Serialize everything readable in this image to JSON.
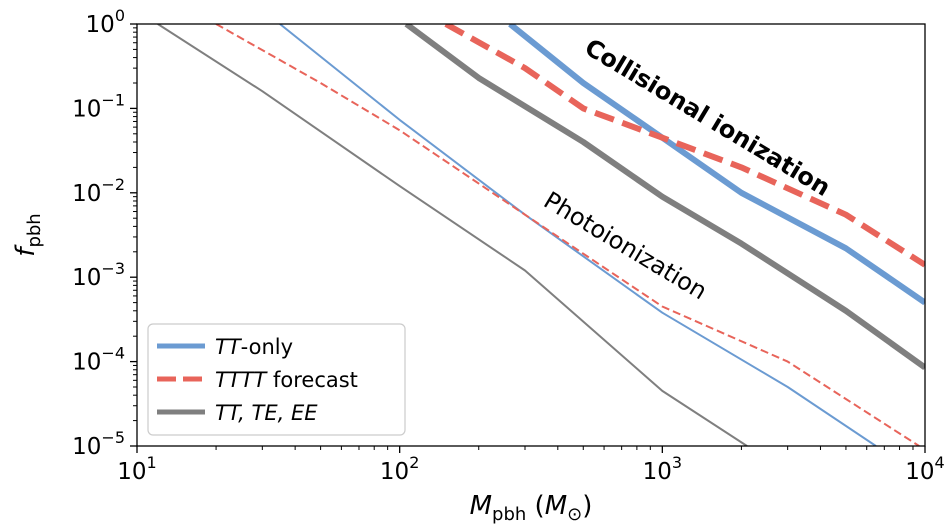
{
  "chart_data": {
    "type": "line",
    "x_scale": "log",
    "y_scale": "log",
    "xlim": [
      10,
      10000
    ],
    "ylim": [
      1e-05,
      1
    ],
    "grid": false,
    "legend_position": "lower-left",
    "x_ticks": [
      {
        "value": 10,
        "base": "10",
        "exp": "1"
      },
      {
        "value": 100,
        "base": "10",
        "exp": "2"
      },
      {
        "value": 1000,
        "base": "10",
        "exp": "3"
      },
      {
        "value": 10000,
        "base": "10",
        "exp": "4"
      }
    ],
    "y_ticks": [
      {
        "value": 1,
        "base": "10",
        "exp": "0"
      },
      {
        "value": 0.1,
        "base": "10",
        "exp": "−1"
      },
      {
        "value": 0.01,
        "base": "10",
        "exp": "−2"
      },
      {
        "value": 0.001,
        "base": "10",
        "exp": "−3"
      },
      {
        "value": 0.0001,
        "base": "10",
        "exp": "−4"
      },
      {
        "value": 1e-05,
        "base": "10",
        "exp": "−5"
      }
    ],
    "xlabel": {
      "var": "M",
      "sub": "pbh",
      "unit_open": " (",
      "unit_var": "M",
      "unit_sub": "⊙",
      "unit_close": ")"
    },
    "ylabel": {
      "var": "f",
      "sub": "pbh"
    },
    "annotations": [
      {
        "text": "Collisional ionization",
        "bold": true
      },
      {
        "text": "Photoionization",
        "bold": false
      }
    ],
    "legend": [
      {
        "parts": [
          {
            "t": "TT",
            "italic": true
          },
          {
            "t": "-only",
            "italic": false
          }
        ],
        "color": "#6b9bd2",
        "dash": "none"
      },
      {
        "parts": [
          {
            "t": "TTTT",
            "italic": true
          },
          {
            "t": " forecast",
            "italic": false
          }
        ],
        "color": "#e8645a",
        "dash": "dashed"
      },
      {
        "parts": [
          {
            "t": "TT, TE, EE",
            "italic": true
          }
        ],
        "color": "#7f7f7f",
        "dash": "none"
      }
    ],
    "series": [
      {
        "group": "Collisional ionization",
        "legend_ref": 0,
        "color": "#6b9bd2",
        "dash": "none",
        "weight": "thick",
        "x": [
          263,
          500,
          1000,
          2000,
          5000,
          10000
        ],
        "y": [
          1.0,
          0.2,
          0.045,
          0.01,
          0.0022,
          0.0005
        ]
      },
      {
        "group": "Collisional ionization",
        "legend_ref": 1,
        "color": "#e8645a",
        "dash": "dashed",
        "weight": "thick",
        "x": [
          150,
          300,
          500,
          1000,
          2000,
          5000,
          10000
        ],
        "y": [
          1.0,
          0.3,
          0.1,
          0.045,
          0.02,
          0.0055,
          0.0014
        ]
      },
      {
        "group": "Collisional ionization",
        "legend_ref": 2,
        "color": "#7f7f7f",
        "dash": "none",
        "weight": "thick",
        "x": [
          106,
          200,
          500,
          1000,
          2000,
          5000,
          10000
        ],
        "y": [
          1.0,
          0.23,
          0.04,
          0.009,
          0.0025,
          0.0004,
          8.5e-05
        ]
      },
      {
        "group": "Photoionization",
        "legend_ref": 0,
        "color": "#6b9bd2",
        "dash": "none",
        "weight": "thin",
        "x": [
          35,
          100,
          300,
          1000,
          3000,
          6500
        ],
        "y": [
          1.0,
          0.073,
          0.0055,
          0.00038,
          5e-05,
          1e-05
        ]
      },
      {
        "group": "Photoionization",
        "legend_ref": 1,
        "color": "#e8645a",
        "dash": "dashed",
        "weight": "thin",
        "x": [
          20,
          50,
          100,
          300,
          1000,
          3000,
          9500
        ],
        "y": [
          1.0,
          0.2,
          0.055,
          0.0055,
          0.00045,
          0.0001,
          1e-05
        ]
      },
      {
        "group": "Photoionization",
        "legend_ref": 2,
        "color": "#7f7f7f",
        "dash": "none",
        "weight": "thin",
        "x": [
          12,
          30,
          100,
          300,
          1000,
          2100
        ],
        "y": [
          1.0,
          0.16,
          0.012,
          0.0012,
          4.5e-05,
          1e-05
        ]
      }
    ]
  }
}
